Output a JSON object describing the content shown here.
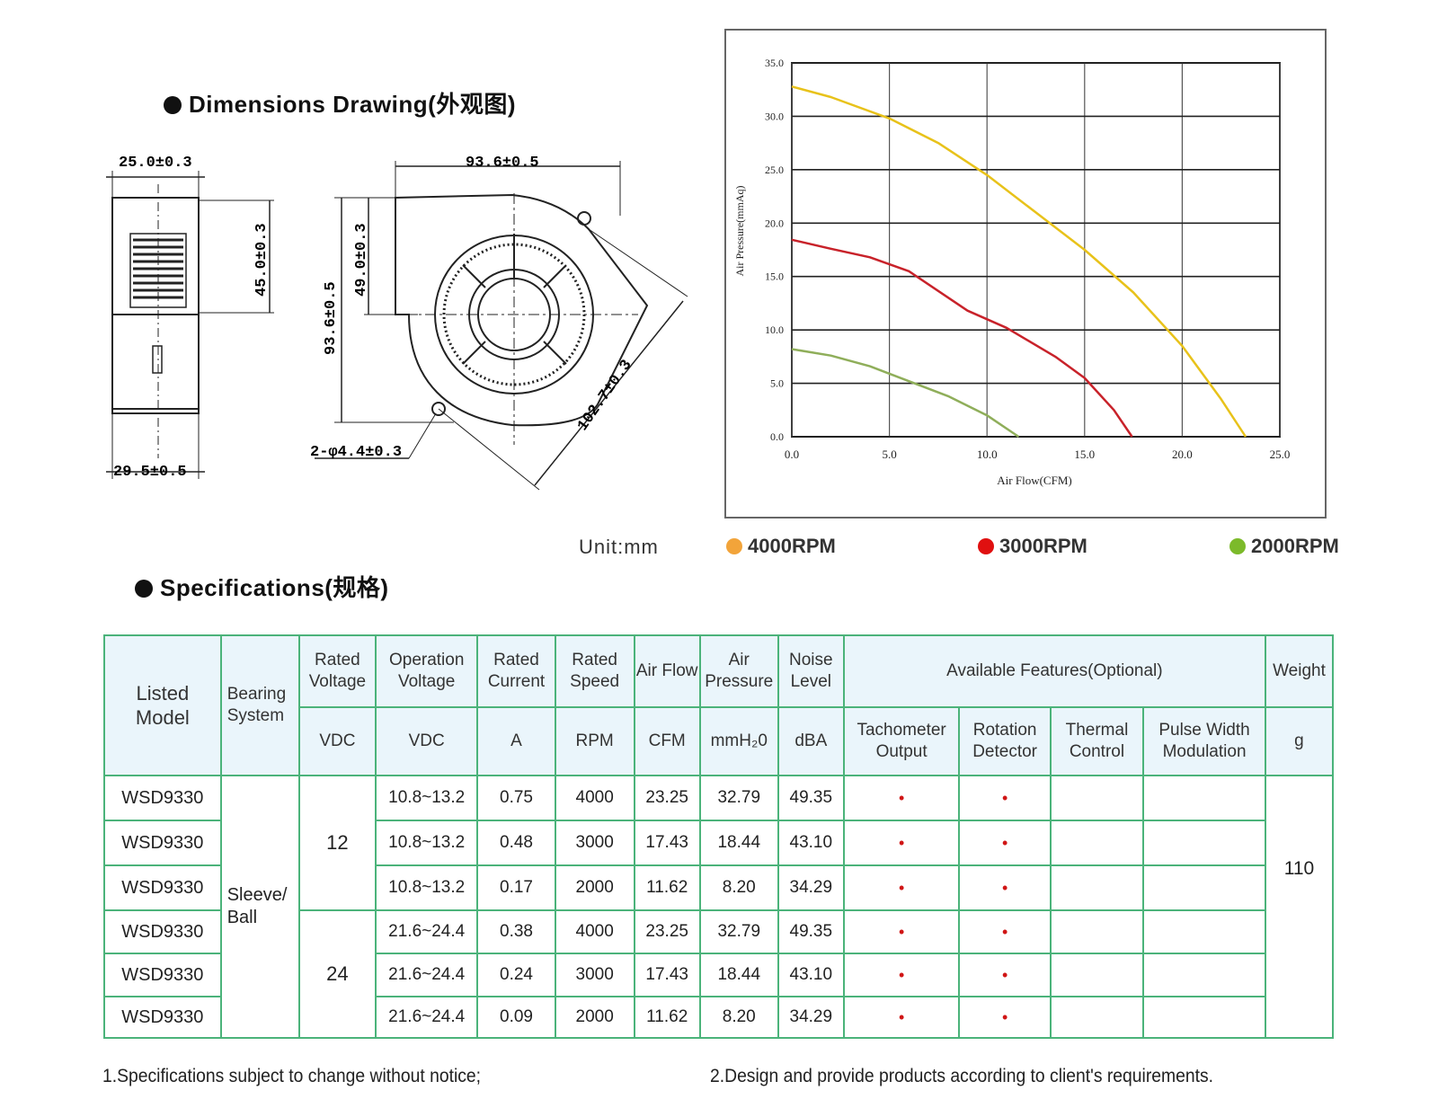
{
  "dimensions": {
    "title": "Dimensions Drawing(外观图)",
    "labels": {
      "side_width_top": "25.0±0.3",
      "side_width_bottom": "29.5±0.5",
      "side_height": "45.0±0.3",
      "front_width": "93.6±0.5",
      "front_height": "93.6±0.5",
      "inlet_height": "49.0±0.3",
      "diagonal": "102.7±0.3",
      "holes": "2-φ4.4±0.3"
    },
    "unit_label": "Unit:mm"
  },
  "chart_data": {
    "type": "line",
    "title": "",
    "xlabel": "Air Flow(CFM)",
    "ylabel": "Air Pressure(mmAq)",
    "xlim": [
      0,
      25
    ],
    "ylim": [
      0,
      35
    ],
    "xticks": [
      "0.0",
      "5.0",
      "10.0",
      "15.0",
      "20.0",
      "25.0"
    ],
    "yticks": [
      "0.0",
      "5.0",
      "10.0",
      "15.0",
      "20.0",
      "25.0",
      "30.0",
      "35.0"
    ],
    "grid": true,
    "legend_position": "bottom",
    "series": [
      {
        "name": "4000RPM",
        "color": "#e8c21a",
        "legend_color": "#f2a43a",
        "x": [
          0,
          2,
          5,
          7.5,
          10,
          12.5,
          15,
          17.5,
          20,
          22,
          23.25
        ],
        "y": [
          32.79,
          31.8,
          29.8,
          27.5,
          24.5,
          21,
          17.5,
          13.5,
          8.5,
          3.5,
          0
        ]
      },
      {
        "name": "3000RPM",
        "color": "#c8222a",
        "legend_color": "#e01010",
        "x": [
          0,
          2,
          4,
          6,
          9,
          11,
          13.5,
          15,
          16.5,
          17.43
        ],
        "y": [
          18.44,
          17.6,
          16.8,
          15.5,
          11.8,
          10.2,
          7.5,
          5.5,
          2.5,
          0
        ]
      },
      {
        "name": "2000RPM",
        "color": "#8fae5a",
        "legend_color": "#7cba2a",
        "x": [
          0,
          2,
          4,
          6,
          8,
          10,
          11.62
        ],
        "y": [
          8.2,
          7.6,
          6.6,
          5.2,
          3.8,
          2.0,
          0
        ]
      }
    ]
  },
  "specifications": {
    "title": "Specifications(规格)",
    "headers": {
      "listed_model": "Listed Model",
      "bearing_system": "Bearing System",
      "rated_voltage": "Rated Voltage",
      "operation_voltage": "Operation Voltage",
      "rated_current": "Rated Current",
      "rated_speed": "Rated Speed",
      "air_flow": "Air Flow",
      "air_pressure": "Air Pressure",
      "noise_level": "Noise Level",
      "available_features": "Available Features(Optional)",
      "weight": "Weight"
    },
    "units": {
      "rated_voltage": "VDC",
      "operation_voltage": "VDC",
      "rated_current": "A",
      "rated_speed": "RPM",
      "air_flow": "CFM",
      "air_pressure": "mmH₂0",
      "noise_level": "dBA",
      "weight": "g"
    },
    "features": {
      "tachometer": "Tachometer Output",
      "rotation": "Rotation Detector",
      "thermal": "Thermal Control",
      "pwm": "Pulse Width Modulation"
    },
    "bearing": "Sleeve/ Ball",
    "voltage_12": "12",
    "voltage_24": "24",
    "weight_value": "110",
    "mark": "•",
    "rows": [
      {
        "model": "WSD9330",
        "op_voltage": "10.8~13.2",
        "current": "0.75",
        "speed": "4000",
        "flow": "23.25",
        "pressure": "32.79",
        "noise": "49.35",
        "tach": "•",
        "rot": "•"
      },
      {
        "model": "WSD9330",
        "op_voltage": "10.8~13.2",
        "current": "0.48",
        "speed": "3000",
        "flow": "17.43",
        "pressure": "18.44",
        "noise": "43.10",
        "tach": "•",
        "rot": "•"
      },
      {
        "model": "WSD9330",
        "op_voltage": "10.8~13.2",
        "current": "0.17",
        "speed": "2000",
        "flow": "11.62",
        "pressure": "8.20",
        "noise": "34.29",
        "tach": "•",
        "rot": "•"
      },
      {
        "model": "WSD9330",
        "op_voltage": "21.6~24.4",
        "current": "0.38",
        "speed": "4000",
        "flow": "23.25",
        "pressure": "32.79",
        "noise": "49.35",
        "tach": "•",
        "rot": "•"
      },
      {
        "model": "WSD9330",
        "op_voltage": "21.6~24.4",
        "current": "0.24",
        "speed": "3000",
        "flow": "17.43",
        "pressure": "18.44",
        "noise": "43.10",
        "tach": "•",
        "rot": "•"
      },
      {
        "model": "WSD9330",
        "op_voltage": "21.6~24.4",
        "current": "0.09",
        "speed": "2000",
        "flow": "11.62",
        "pressure": "8.20",
        "noise": "34.29",
        "tach": "•",
        "rot": "•"
      }
    ]
  },
  "footnotes": {
    "note1": "1.Specifications subject to change without notice;",
    "note2": "2.Design and provide products according to client's requirements."
  }
}
